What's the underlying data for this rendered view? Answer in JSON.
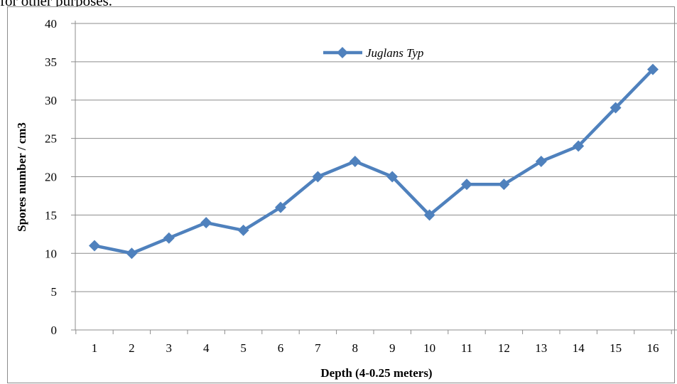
{
  "caption_fragment": "for other purposes.",
  "chart_data": {
    "type": "line",
    "categories": [
      "1",
      "2",
      "3",
      "4",
      "5",
      "6",
      "7",
      "8",
      "9",
      "10",
      "11",
      "12",
      "13",
      "14",
      "15",
      "16"
    ],
    "series": [
      {
        "name": "Juglans Typ",
        "values": [
          11,
          10,
          12,
          14,
          13,
          16,
          20,
          22,
          20,
          15,
          19,
          19,
          22,
          24,
          29,
          34
        ]
      }
    ],
    "yticks": [
      "0",
      "5",
      "10",
      "15",
      "20",
      "25",
      "30",
      "35",
      "40"
    ],
    "ylim": [
      0,
      40
    ],
    "xlabel": "Depth  (4-0.25 meters)",
    "ylabel": "Spores number  / cm3",
    "grid": "horizontal",
    "legend_position": "top-right",
    "series_color": "#4f81bd",
    "gridline_color": "#8c8c8c"
  }
}
